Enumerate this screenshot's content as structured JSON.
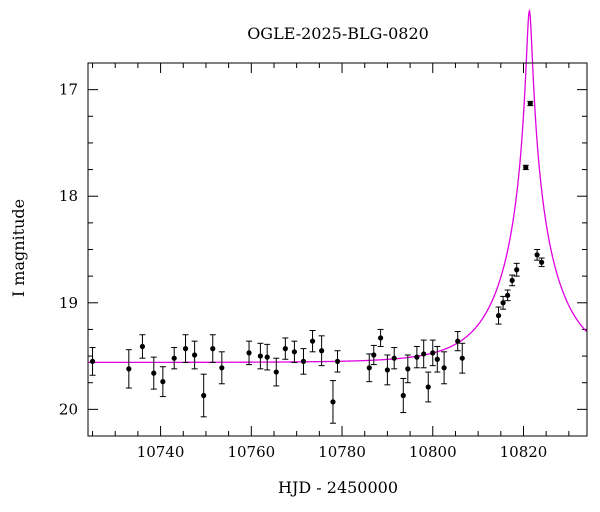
{
  "chart_data": {
    "type": "scatter",
    "title": "OGLE-2025-BLG-0820",
    "xlabel": "HJD - 2450000",
    "ylabel": "I magnitude",
    "xlim": [
      10724,
      10834
    ],
    "ylim": [
      20.25,
      16.75
    ],
    "y_inverted": true,
    "grid": false,
    "legend": "none",
    "x_ticks": [
      10740,
      10760,
      10780,
      10800,
      10820
    ],
    "y_ticks": [
      17,
      18,
      19,
      20
    ],
    "x_minor_step": 5,
    "y_minor_step": 0.25,
    "colors": {
      "points": "#000000",
      "model": "#e000e0",
      "axes": "#000000"
    },
    "series": [
      {
        "kind": "points",
        "x": [
          10725,
          10733,
          10736,
          10738.5,
          10740.5,
          10743,
          10745.5,
          10747.5,
          10749.5,
          10751.5,
          10753.5,
          10759.5,
          10762,
          10763.5,
          10765.5,
          10767.5,
          10769.5,
          10771.5,
          10773.5,
          10775.5,
          10778,
          10779,
          10786,
          10787,
          10788.5,
          10790,
          10791.5,
          10793.5,
          10794.5,
          10796.5,
          10798,
          10799,
          10800,
          10801,
          10802.5,
          10805.5,
          10806.5,
          10814.5,
          10815.5,
          10816.5,
          10817.5,
          10818.5,
          10820.5,
          10821.5,
          10823,
          10824
        ],
        "y": [
          19.55,
          19.62,
          19.41,
          19.66,
          19.74,
          19.52,
          19.43,
          19.49,
          19.87,
          19.43,
          19.61,
          19.47,
          19.5,
          19.51,
          19.65,
          19.43,
          19.46,
          19.55,
          19.36,
          19.45,
          19.93,
          19.55,
          19.61,
          19.49,
          19.33,
          19.63,
          19.52,
          19.87,
          19.62,
          19.51,
          19.48,
          19.79,
          19.47,
          19.53,
          19.61,
          19.36,
          19.52,
          19.12,
          19.0,
          18.93,
          18.79,
          18.69,
          17.73,
          17.13,
          18.55,
          18.62
        ],
        "yerr": [
          0.13,
          0.18,
          0.11,
          0.15,
          0.14,
          0.1,
          0.13,
          0.13,
          0.2,
          0.13,
          0.15,
          0.11,
          0.12,
          0.12,
          0.13,
          0.1,
          0.1,
          0.12,
          0.1,
          0.14,
          0.2,
          0.1,
          0.13,
          0.09,
          0.08,
          0.14,
          0.1,
          0.16,
          0.13,
          0.1,
          0.13,
          0.14,
          0.12,
          0.12,
          0.15,
          0.09,
          0.14,
          0.08,
          0.06,
          0.05,
          0.05,
          0.06,
          0.02,
          0.02,
          0.05,
          0.04
        ]
      },
      {
        "kind": "model",
        "baseline": 19.56,
        "t0": 10821.3,
        "u0": 0.048,
        "tE": 12.0
      }
    ]
  }
}
